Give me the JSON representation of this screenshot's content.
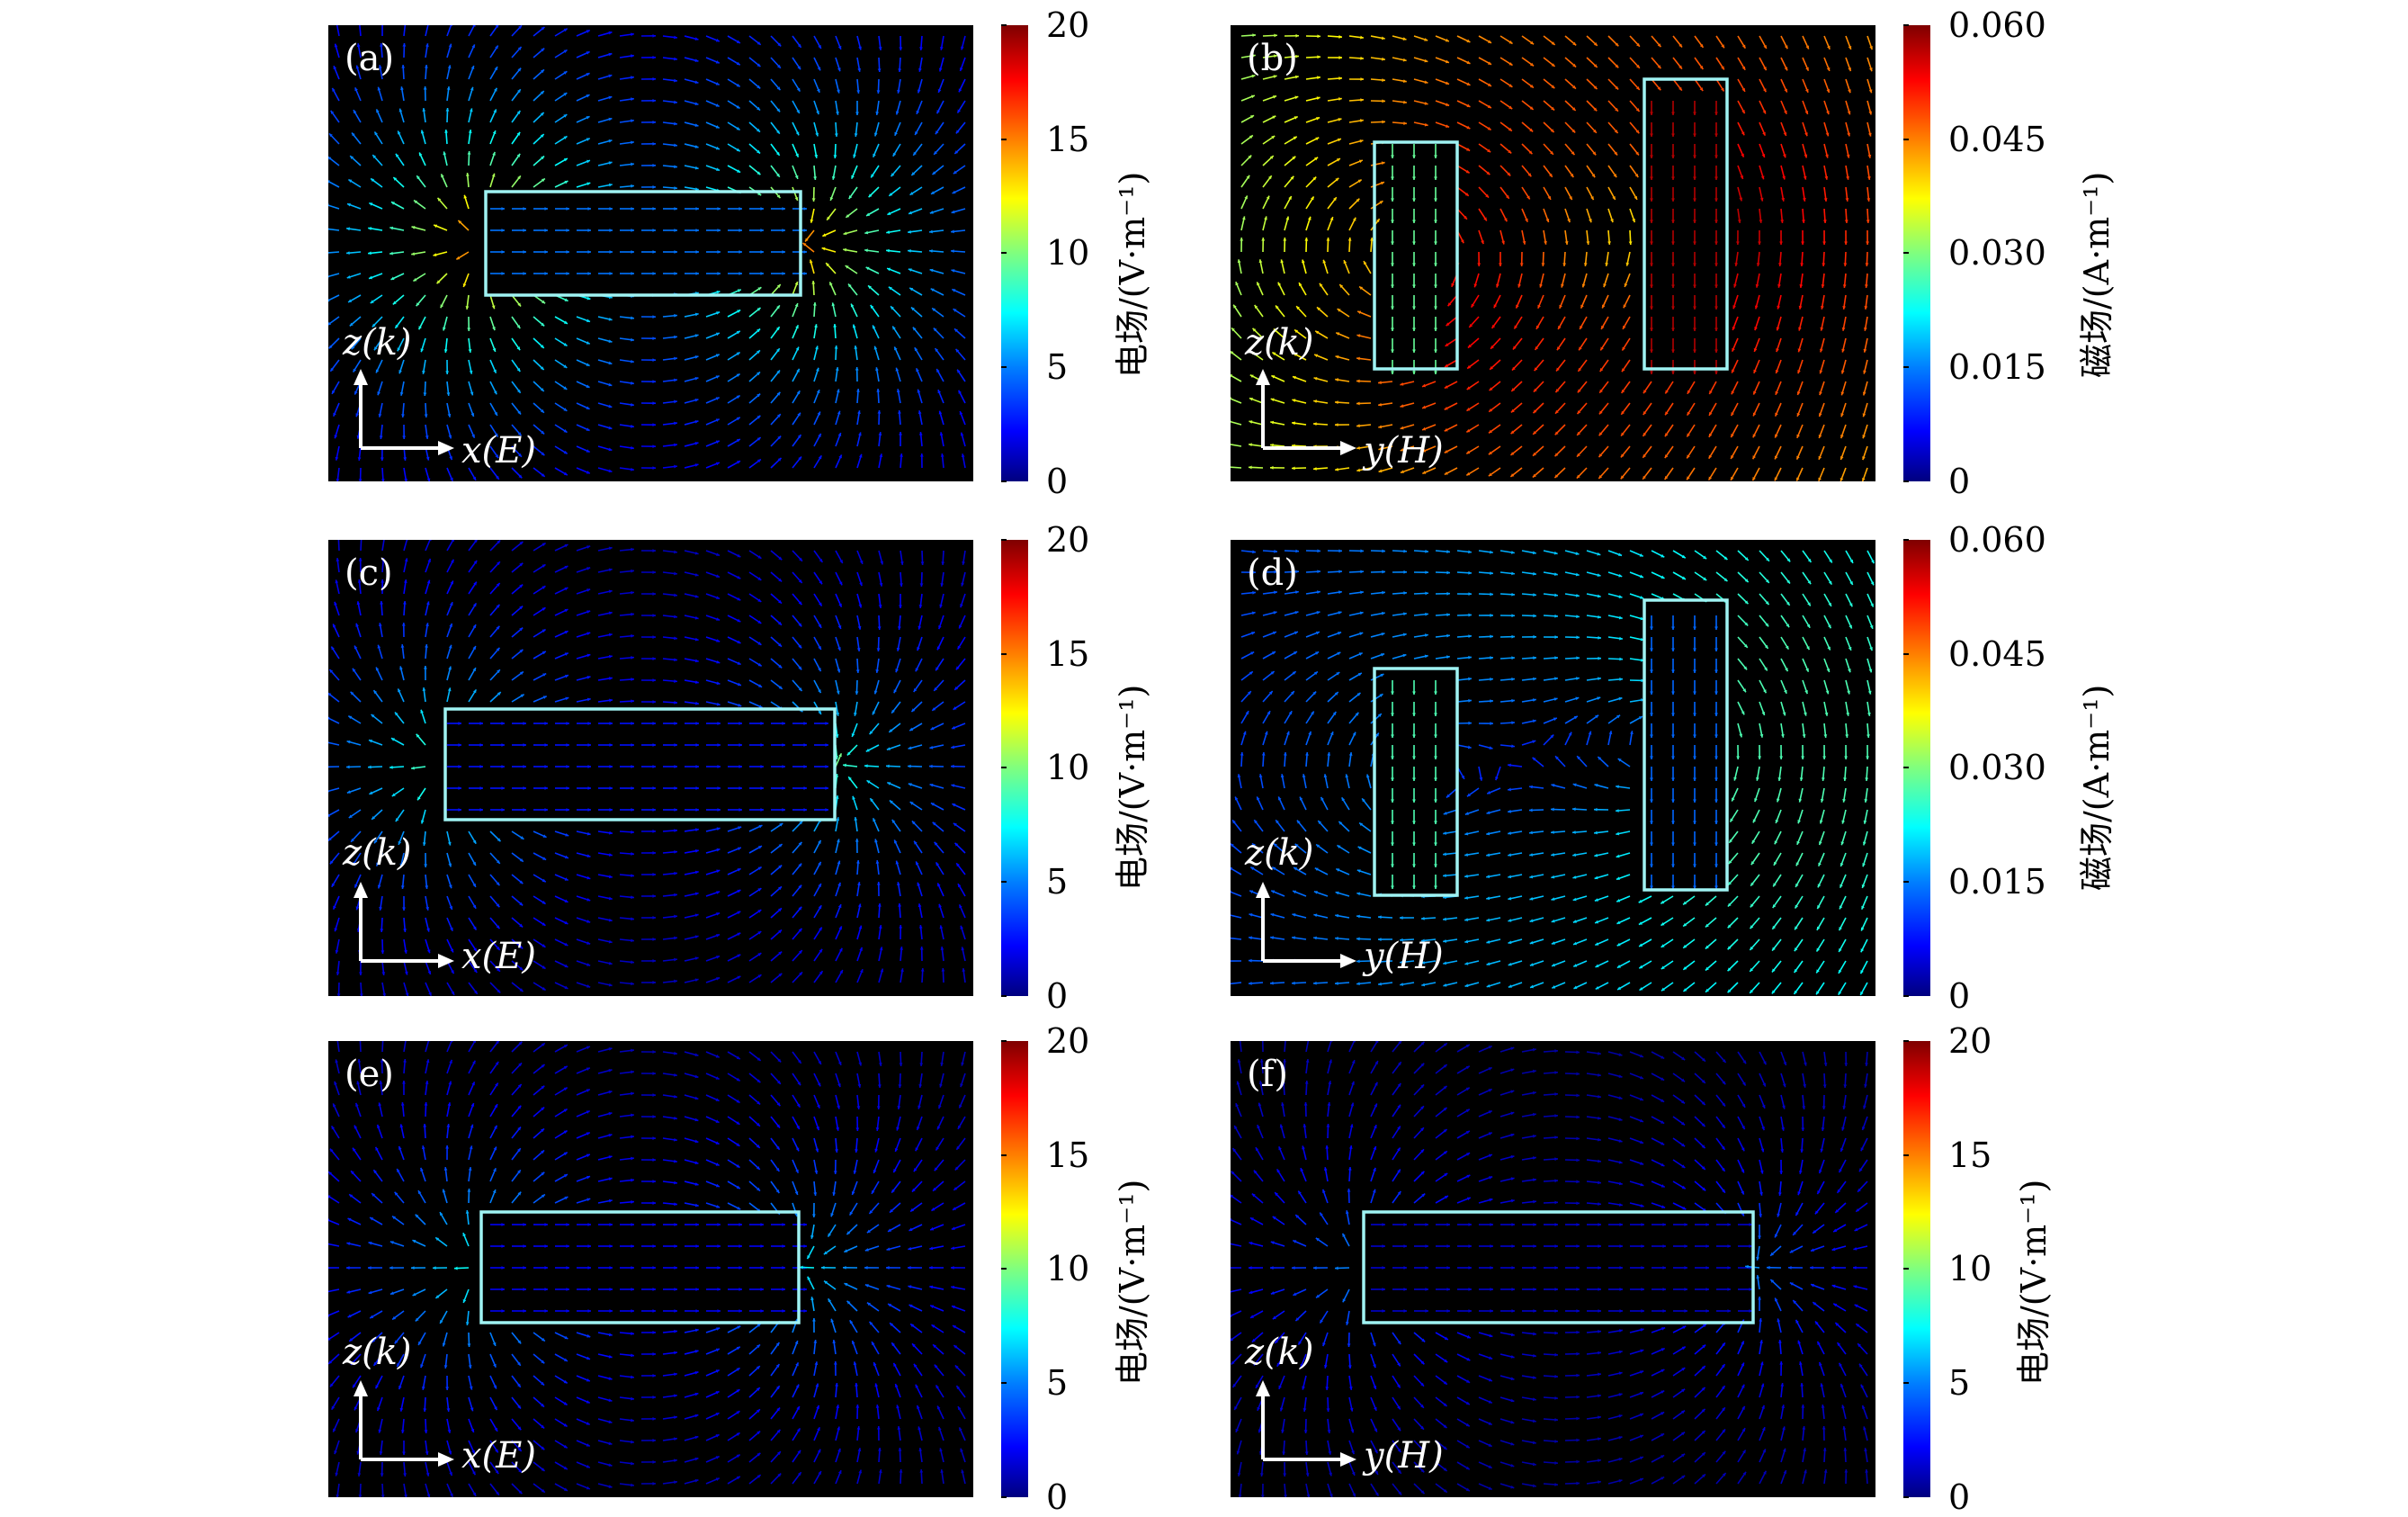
{
  "chart_data": [
    {
      "type": "vector-field",
      "panel_label": "(a)",
      "horizontal_axis": "x(E)",
      "vertical_axis": "z(k)",
      "colorbar": {
        "label": "电场/(V·m⁻¹)",
        "range": [
          0,
          20
        ],
        "ticks": [
          "0",
          "5",
          "10",
          "15",
          "20"
        ]
      },
      "structures": "one horizontal rectangle",
      "peak_field_fraction": 0.85
    },
    {
      "type": "vector-field",
      "panel_label": "(b)",
      "horizontal_axis": "y(H)",
      "vertical_axis": "z(k)",
      "colorbar": {
        "label": "磁场/(A·m⁻¹)",
        "range": [
          0,
          0.06
        ],
        "ticks": [
          "0",
          "0.015",
          "0.030",
          "0.045",
          "0.060"
        ]
      },
      "structures": "two vertical rectangles",
      "peak_field_fraction": 0.95
    },
    {
      "type": "vector-field",
      "panel_label": "(c)",
      "horizontal_axis": "x(E)",
      "vertical_axis": "z(k)",
      "colorbar": {
        "label": "电场/(V·m⁻¹)",
        "range": [
          0,
          20
        ],
        "ticks": [
          "0",
          "5",
          "10",
          "15",
          "20"
        ]
      },
      "structures": "one horizontal rectangle",
      "peak_field_fraction": 0.5
    },
    {
      "type": "vector-field",
      "panel_label": "(d)",
      "horizontal_axis": "y(H)",
      "vertical_axis": "z(k)",
      "colorbar": {
        "label": "磁场/(A·m⁻¹)",
        "range": [
          0,
          0.06
        ],
        "ticks": [
          "0",
          "0.015",
          "0.030",
          "0.045",
          "0.060"
        ]
      },
      "structures": "two vertical rectangles",
      "peak_field_fraction": 0.45
    },
    {
      "type": "vector-field",
      "panel_label": "(e)",
      "horizontal_axis": "x(E)",
      "vertical_axis": "z(k)",
      "colorbar": {
        "label": "电场/(V·m⁻¹)",
        "range": [
          0,
          20
        ],
        "ticks": [
          "0",
          "5",
          "10",
          "15",
          "20"
        ]
      },
      "structures": "one horizontal rectangle",
      "peak_field_fraction": 0.42
    },
    {
      "type": "vector-field",
      "panel_label": "(f)",
      "horizontal_axis": "y(H)",
      "vertical_axis": "z(k)",
      "colorbar": {
        "label": "电场/(V·m⁻¹)",
        "range": [
          0,
          20
        ],
        "ticks": [
          "0",
          "5",
          "10",
          "15",
          "20"
        ]
      },
      "structures": "one horizontal rectangle",
      "peak_field_fraction": 0.28
    }
  ],
  "colors": {
    "background": "#000000",
    "structure_outline": "#9ff3f3",
    "axis_arrow": "#ffffff"
  }
}
